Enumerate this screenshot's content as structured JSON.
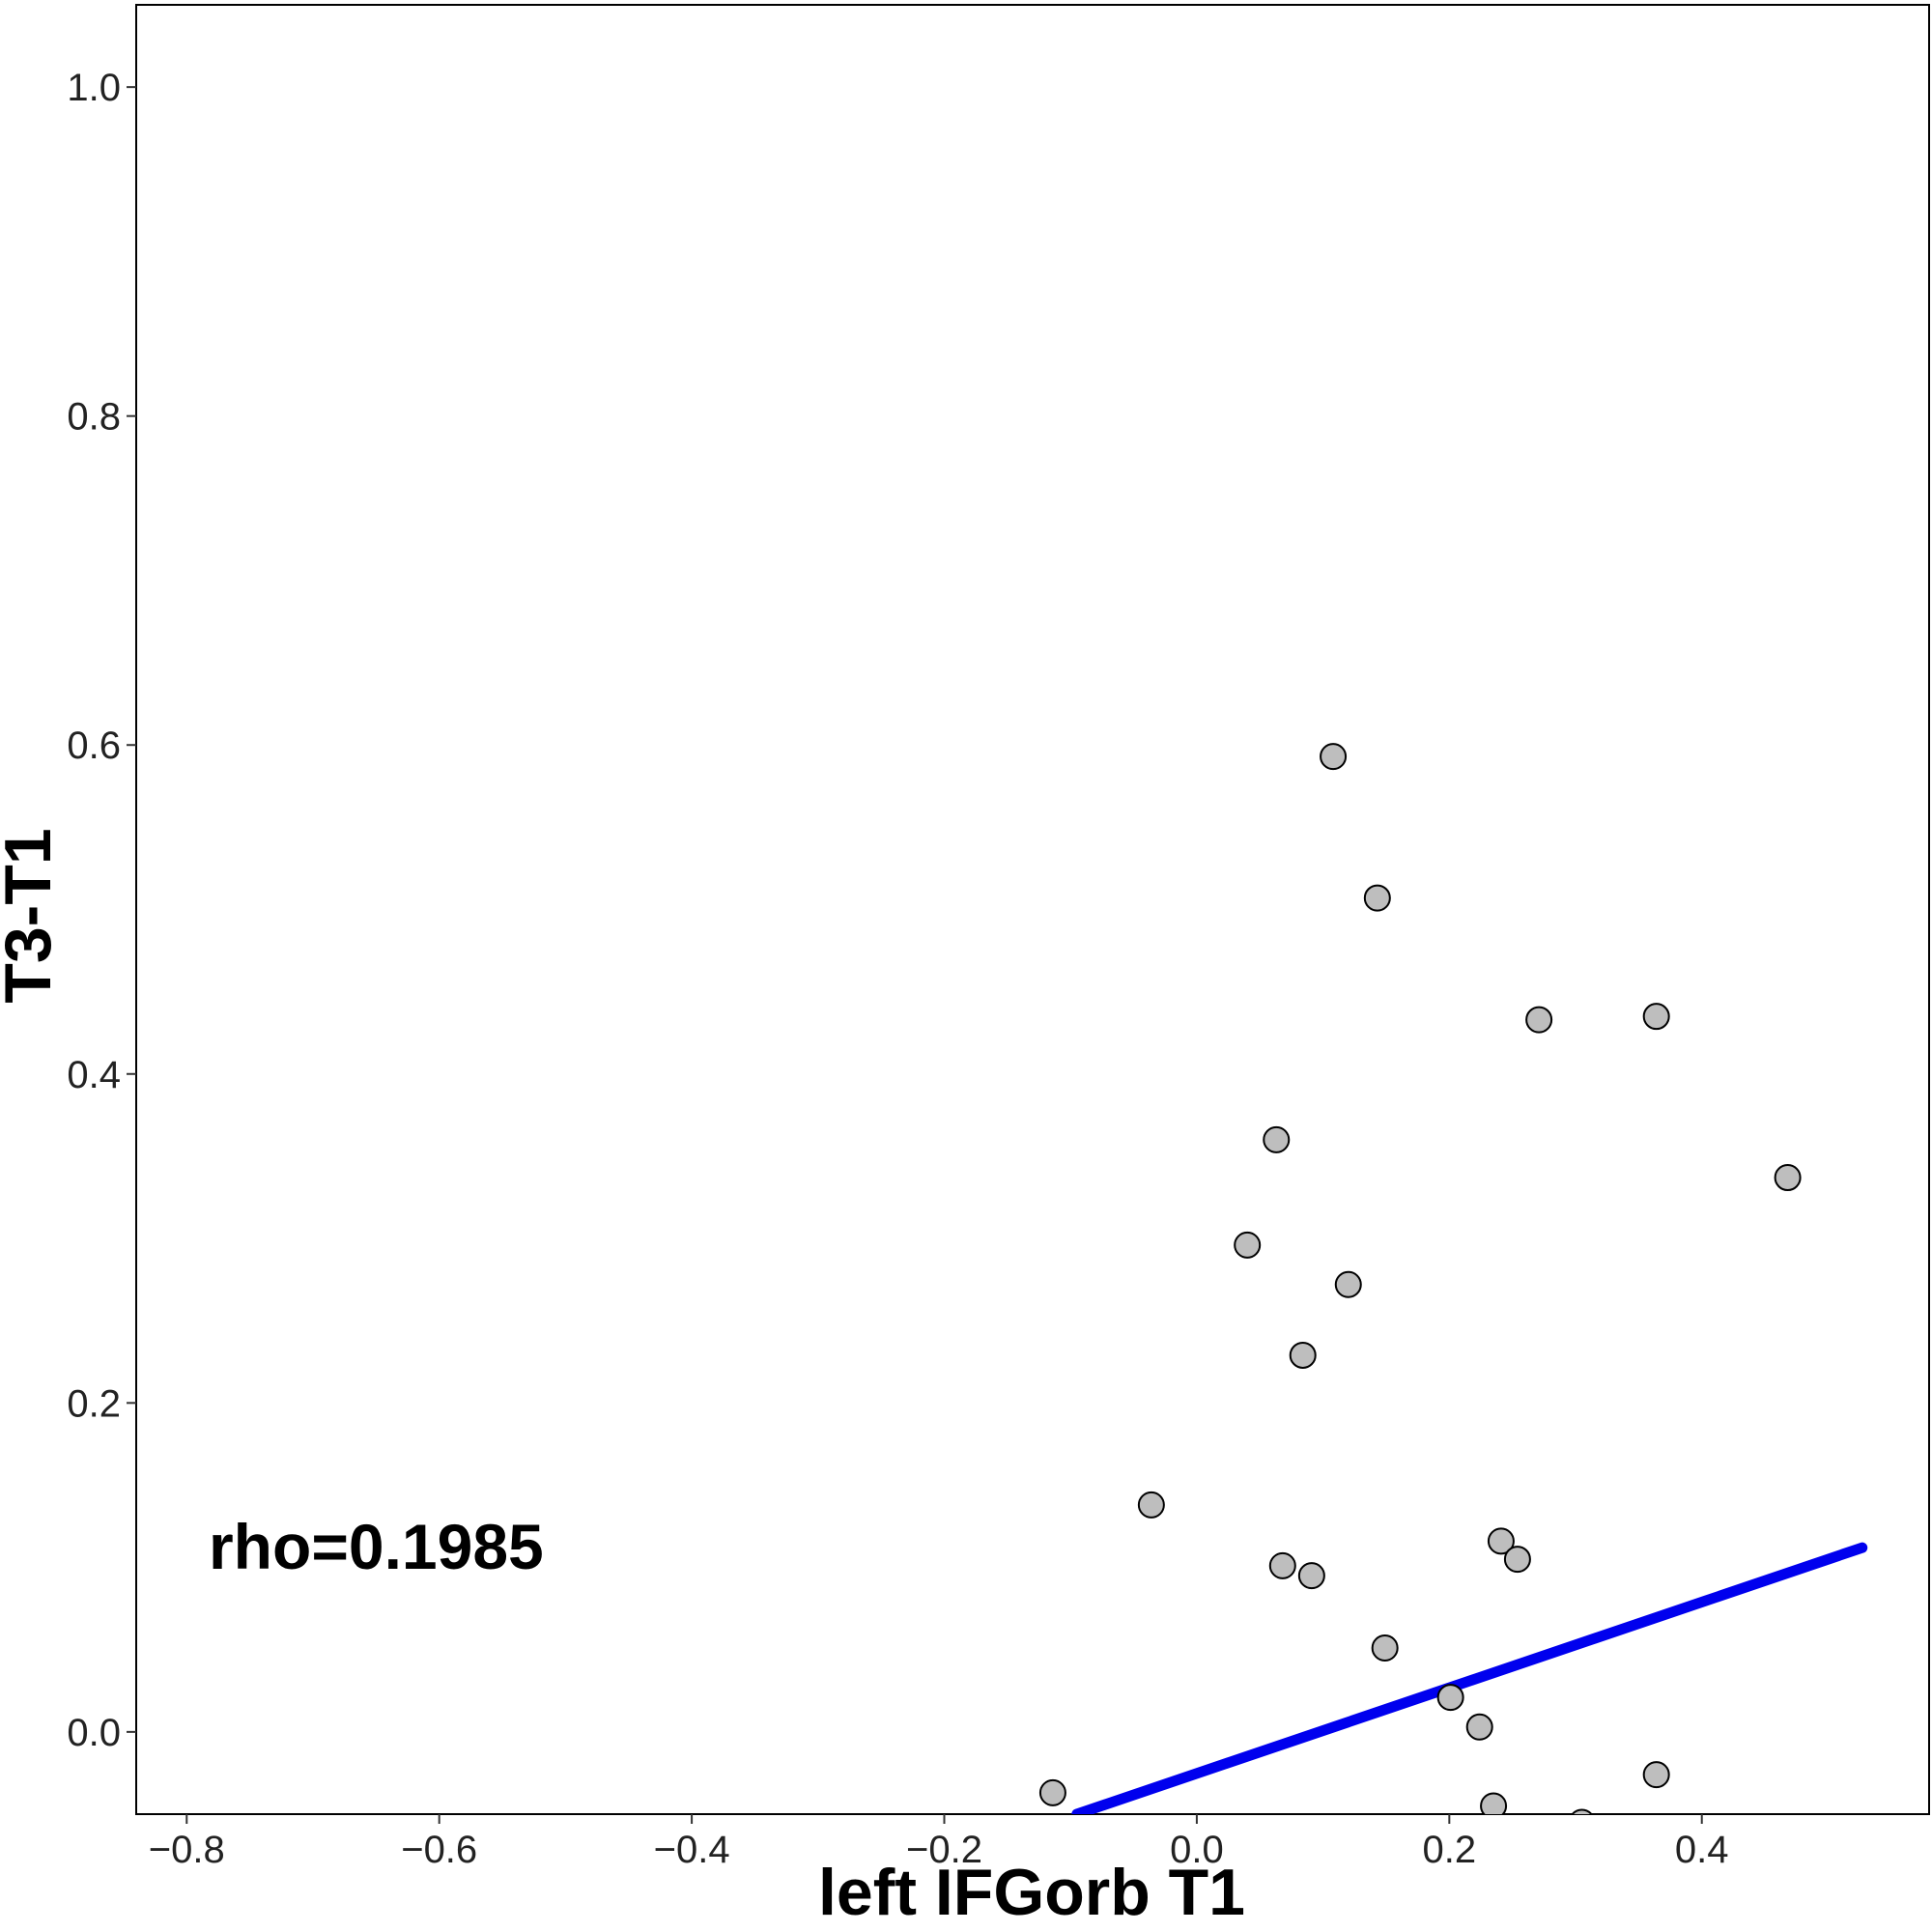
{
  "chart_data": {
    "type": "scatter",
    "xlabel": "left IFGorb T1",
    "ylabel": "T3-T1",
    "annotation": "rho=0.1985",
    "xlim": [
      -0.84,
      0.58
    ],
    "ylim": [
      -0.05,
      1.05
    ],
    "x_ticks": [
      -0.8,
      -0.6,
      -0.4,
      -0.2,
      0.0,
      0.2,
      0.4
    ],
    "x_tick_labels": [
      "−0.8",
      "−0.6",
      "−0.4",
      "−0.2",
      "0.0",
      "0.2",
      "0.4"
    ],
    "y_ticks": [
      0.0,
      0.2,
      0.4,
      0.6,
      0.8,
      1.0
    ],
    "y_tick_labels": [
      "0.0",
      "0.2",
      "0.4",
      "0.6",
      "0.8",
      "1.0"
    ],
    "grid": false,
    "points": [
      {
        "x": 0.108,
        "y": 0.593
      },
      {
        "x": 0.143,
        "y": 0.507
      },
      {
        "x": 0.271,
        "y": 0.433
      },
      {
        "x": 0.364,
        "y": 0.435
      },
      {
        "x": 0.063,
        "y": 0.36
      },
      {
        "x": 0.468,
        "y": 0.337
      },
      {
        "x": 0.04,
        "y": 0.296
      },
      {
        "x": 0.12,
        "y": 0.272
      },
      {
        "x": 0.084,
        "y": 0.229
      },
      {
        "x": -0.036,
        "y": 0.138
      },
      {
        "x": 0.241,
        "y": 0.116
      },
      {
        "x": 0.254,
        "y": 0.105
      },
      {
        "x": 0.068,
        "y": 0.101
      },
      {
        "x": 0.091,
        "y": 0.095
      },
      {
        "x": 0.149,
        "y": 0.051
      },
      {
        "x": 0.201,
        "y": 0.021
      },
      {
        "x": 0.224,
        "y": 0.003
      },
      {
        "x": 0.364,
        "y": -0.026
      },
      {
        "x": -0.114,
        "y": -0.037
      },
      {
        "x": 0.235,
        "y": -0.045
      },
      {
        "x": 0.305,
        "y": -0.055
      }
    ],
    "fit_line": {
      "x": [
        -0.095,
        0.527
      ],
      "y": [
        -0.05,
        0.112
      ]
    },
    "colors": {
      "point_fill": "#bebebe",
      "point_stroke": "#000000",
      "fit_line": "#0000ee"
    }
  }
}
